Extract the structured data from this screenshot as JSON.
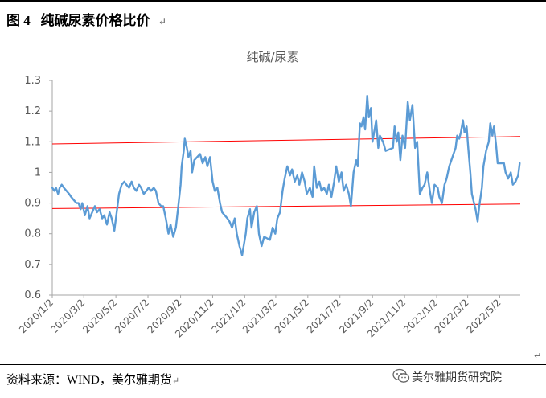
{
  "figure": {
    "label": "图 4",
    "title": "纯碱尿素价格比价",
    "source": "资料来源：WIND，美尔雅期货",
    "watermark": "美尔雅期货研究院"
  },
  "colors": {
    "series": "#5b9bd5",
    "trend": "#ff0000",
    "axis": "#a6a6a6",
    "text": "#595959"
  },
  "icons": {
    "watermark_logo": "wechat-icon"
  },
  "chart_data": {
    "type": "line",
    "title": "纯碱/尿素",
    "xlabel": "",
    "ylabel": "",
    "ylim": [
      0.6,
      1.3
    ],
    "yticks": [
      0.6,
      0.7,
      0.8,
      0.9,
      1.0,
      1.1,
      1.2,
      1.3
    ],
    "ytick_labels": [
      "0.6",
      "0.7",
      "0.8",
      "0.9",
      "1",
      "1.1",
      "1.2",
      "1.3"
    ],
    "xlim": [
      "2020-01-02",
      "2022-06-10"
    ],
    "xtick_labels": [
      "2020/1/2",
      "2020/3/2",
      "2020/5/2",
      "2020/7/2",
      "2020/9/2",
      "2020/11/2",
      "2021/1/2",
      "2021/3/2",
      "2021/5/2",
      "2021/7/2",
      "2021/9/2",
      "2021/11/2",
      "2022/1/2",
      "2022/3/2",
      "2022/5/2"
    ],
    "grid": false,
    "legend": "none",
    "series": [
      {
        "points": [
          [
            "2020-01-02",
            0.95
          ],
          [
            "2020-01-06",
            0.94
          ],
          [
            "2020-01-09",
            0.95
          ],
          [
            "2020-01-13",
            0.93
          ],
          [
            "2020-01-16",
            0.95
          ],
          [
            "2020-01-20",
            0.96
          ],
          [
            "2020-01-24",
            0.95
          ],
          [
            "2020-02-03",
            0.93
          ],
          [
            "2020-02-07",
            0.92
          ],
          [
            "2020-02-12",
            0.91
          ],
          [
            "2020-02-17",
            0.9
          ],
          [
            "2020-02-21",
            0.9
          ],
          [
            "2020-02-25",
            0.88
          ],
          [
            "2020-02-28",
            0.9
          ],
          [
            "2020-03-04",
            0.86
          ],
          [
            "2020-03-09",
            0.89
          ],
          [
            "2020-03-13",
            0.85
          ],
          [
            "2020-03-18",
            0.87
          ],
          [
            "2020-03-23",
            0.89
          ],
          [
            "2020-03-27",
            0.87
          ],
          [
            "2020-04-01",
            0.88
          ],
          [
            "2020-04-06",
            0.85
          ],
          [
            "2020-04-10",
            0.86
          ],
          [
            "2020-04-15",
            0.83
          ],
          [
            "2020-04-20",
            0.87
          ],
          [
            "2020-04-24",
            0.85
          ],
          [
            "2020-04-29",
            0.81
          ],
          [
            "2020-05-05",
            0.89
          ],
          [
            "2020-05-08",
            0.93
          ],
          [
            "2020-05-13",
            0.96
          ],
          [
            "2020-05-18",
            0.97
          ],
          [
            "2020-05-22",
            0.96
          ],
          [
            "2020-05-27",
            0.95
          ],
          [
            "2020-06-01",
            0.97
          ],
          [
            "2020-06-05",
            0.95
          ],
          [
            "2020-06-10",
            0.94
          ],
          [
            "2020-06-15",
            0.96
          ],
          [
            "2020-06-19",
            0.95
          ],
          [
            "2020-06-24",
            0.93
          ],
          [
            "2020-06-29",
            0.94
          ],
          [
            "2020-07-03",
            0.95
          ],
          [
            "2020-07-08",
            0.94
          ],
          [
            "2020-07-13",
            0.95
          ],
          [
            "2020-07-17",
            0.94
          ],
          [
            "2020-07-22",
            0.9
          ],
          [
            "2020-07-27",
            0.89
          ],
          [
            "2020-07-31",
            0.89
          ],
          [
            "2020-08-05",
            0.85
          ],
          [
            "2020-08-10",
            0.8
          ],
          [
            "2020-08-14",
            0.83
          ],
          [
            "2020-08-19",
            0.79
          ],
          [
            "2020-08-24",
            0.82
          ],
          [
            "2020-08-28",
            0.88
          ],
          [
            "2020-09-02",
            0.96
          ],
          [
            "2020-09-04",
            1.02
          ],
          [
            "2020-09-08",
            1.07
          ],
          [
            "2020-09-10",
            1.11
          ],
          [
            "2020-09-14",
            1.08
          ],
          [
            "2020-09-17",
            1.05
          ],
          [
            "2020-09-21",
            1.07
          ],
          [
            "2020-09-24",
            1.0
          ],
          [
            "2020-09-28",
            1.04
          ],
          [
            "2020-10-09",
            1.06
          ],
          [
            "2020-10-14",
            1.03
          ],
          [
            "2020-10-19",
            1.05
          ],
          [
            "2020-10-23",
            1.02
          ],
          [
            "2020-10-28",
            1.05
          ],
          [
            "2020-11-02",
            0.97
          ],
          [
            "2020-11-06",
            0.94
          ],
          [
            "2020-11-11",
            0.95
          ],
          [
            "2020-11-16",
            0.9
          ],
          [
            "2020-11-20",
            0.87
          ],
          [
            "2020-11-25",
            0.86
          ],
          [
            "2020-11-30",
            0.85
          ],
          [
            "2020-12-04",
            0.84
          ],
          [
            "2020-12-09",
            0.82
          ],
          [
            "2020-12-14",
            0.85
          ],
          [
            "2020-12-18",
            0.8
          ],
          [
            "2020-12-23",
            0.76
          ],
          [
            "2020-12-28",
            0.73
          ],
          [
            "2021-01-04",
            0.8
          ],
          [
            "2021-01-07",
            0.85
          ],
          [
            "2021-01-12",
            0.88
          ],
          [
            "2021-01-15",
            0.82
          ],
          [
            "2021-01-20",
            0.87
          ],
          [
            "2021-01-25",
            0.89
          ],
          [
            "2021-01-29",
            0.8
          ],
          [
            "2021-02-03",
            0.76
          ],
          [
            "2021-02-08",
            0.79
          ],
          [
            "2021-02-19",
            0.78
          ],
          [
            "2021-02-24",
            0.82
          ],
          [
            "2021-03-01",
            0.8
          ],
          [
            "2021-03-05",
            0.85
          ],
          [
            "2021-03-10",
            0.87
          ],
          [
            "2021-03-15",
            0.94
          ],
          [
            "2021-03-19",
            0.98
          ],
          [
            "2021-03-24",
            1.02
          ],
          [
            "2021-03-29",
            0.99
          ],
          [
            "2021-04-02",
            1.01
          ],
          [
            "2021-04-07",
            0.97
          ],
          [
            "2021-04-12",
            0.99
          ],
          [
            "2021-04-16",
            0.96
          ],
          [
            "2021-04-21",
            1.0
          ],
          [
            "2021-04-26",
            0.97
          ],
          [
            "2021-04-30",
            0.93
          ],
          [
            "2021-05-06",
            0.95
          ],
          [
            "2021-05-11",
            0.92
          ],
          [
            "2021-05-14",
            1.02
          ],
          [
            "2021-05-19",
            0.95
          ],
          [
            "2021-05-24",
            0.97
          ],
          [
            "2021-05-28",
            0.94
          ],
          [
            "2021-06-02",
            0.95
          ],
          [
            "2021-06-07",
            0.93
          ],
          [
            "2021-06-11",
            0.96
          ],
          [
            "2021-06-16",
            0.92
          ],
          [
            "2021-06-21",
            0.97
          ],
          [
            "2021-06-25",
            1.02
          ],
          [
            "2021-06-30",
            0.97
          ],
          [
            "2021-07-05",
            1.0
          ],
          [
            "2021-07-09",
            0.94
          ],
          [
            "2021-07-14",
            0.96
          ],
          [
            "2021-07-19",
            0.93
          ],
          [
            "2021-07-23",
            0.89
          ],
          [
            "2021-07-28",
            1.0
          ],
          [
            "2021-08-02",
            1.04
          ],
          [
            "2021-08-05",
            1.02
          ],
          [
            "2021-08-09",
            1.16
          ],
          [
            "2021-08-12",
            1.15
          ],
          [
            "2021-08-16",
            1.18
          ],
          [
            "2021-08-19",
            1.14
          ],
          [
            "2021-08-23",
            1.25
          ],
          [
            "2021-08-26",
            1.18
          ],
          [
            "2021-08-30",
            1.21
          ],
          [
            "2021-09-02",
            1.1
          ],
          [
            "2021-09-06",
            1.14
          ],
          [
            "2021-09-09",
            1.17
          ],
          [
            "2021-09-13",
            1.08
          ],
          [
            "2021-09-16",
            1.12
          ],
          [
            "2021-09-22",
            1.1
          ],
          [
            "2021-09-27",
            1.07
          ],
          [
            "2021-10-11",
            1.08
          ],
          [
            "2021-10-14",
            1.15
          ],
          [
            "2021-10-18",
            1.1
          ],
          [
            "2021-10-21",
            1.13
          ],
          [
            "2021-10-25",
            1.04
          ],
          [
            "2021-10-29",
            1.12
          ],
          [
            "2021-11-03",
            1.08
          ],
          [
            "2021-11-08",
            1.23
          ],
          [
            "2021-11-12",
            1.17
          ],
          [
            "2021-11-17",
            1.22
          ],
          [
            "2021-11-22",
            1.08
          ],
          [
            "2021-11-26",
            1.1
          ],
          [
            "2021-12-01",
            0.93
          ],
          [
            "2021-12-06",
            0.95
          ],
          [
            "2021-12-10",
            0.96
          ],
          [
            "2021-12-15",
            1.0
          ],
          [
            "2021-12-20",
            0.94
          ],
          [
            "2021-12-24",
            0.9
          ],
          [
            "2021-12-29",
            0.96
          ],
          [
            "2022-01-04",
            0.95
          ],
          [
            "2022-01-07",
            0.92
          ],
          [
            "2022-01-12",
            0.9
          ],
          [
            "2022-01-17",
            0.96
          ],
          [
            "2022-01-21",
            0.98
          ],
          [
            "2022-01-26",
            1.02
          ],
          [
            "2022-02-07",
            1.08
          ],
          [
            "2022-02-10",
            1.12
          ],
          [
            "2022-02-14",
            1.11
          ],
          [
            "2022-02-17",
            1.13
          ],
          [
            "2022-02-21",
            1.17
          ],
          [
            "2022-02-24",
            1.13
          ],
          [
            "2022-02-28",
            1.15
          ],
          [
            "2022-03-03",
            1.08
          ],
          [
            "2022-03-07",
            1.0
          ],
          [
            "2022-03-10",
            0.93
          ],
          [
            "2022-03-14",
            0.9
          ],
          [
            "2022-03-17",
            0.88
          ],
          [
            "2022-03-21",
            0.84
          ],
          [
            "2022-03-24",
            0.89
          ],
          [
            "2022-03-29",
            0.95
          ],
          [
            "2022-04-01",
            1.02
          ],
          [
            "2022-04-06",
            1.07
          ],
          [
            "2022-04-11",
            1.1
          ],
          [
            "2022-04-14",
            1.16
          ],
          [
            "2022-04-18",
            1.12
          ],
          [
            "2022-04-21",
            1.15
          ],
          [
            "2022-04-25",
            1.09
          ],
          [
            "2022-04-28",
            1.03
          ],
          [
            "2022-05-05",
            1.03
          ],
          [
            "2022-05-10",
            1.03
          ],
          [
            "2022-05-13",
            1.0
          ],
          [
            "2022-05-18",
            0.98
          ],
          [
            "2022-05-23",
            1.0
          ],
          [
            "2022-05-27",
            0.96
          ],
          [
            "2022-06-01",
            0.97
          ],
          [
            "2022-06-06",
            0.99
          ],
          [
            "2022-06-09",
            1.03
          ]
        ]
      }
    ],
    "trend_lines": [
      {
        "from": [
          "2020-01-02",
          1.093
        ],
        "to": [
          "2022-06-10",
          1.117
        ]
      },
      {
        "from": [
          "2020-01-02",
          0.882
        ],
        "to": [
          "2022-06-10",
          0.897
        ]
      }
    ]
  }
}
